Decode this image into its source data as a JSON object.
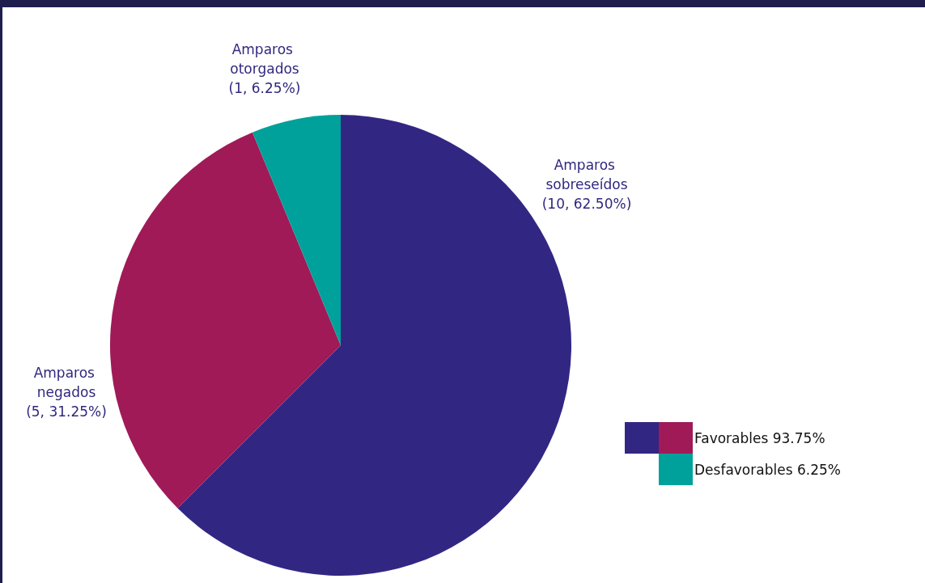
{
  "chart_data": {
    "type": "pie",
    "categories": [
      "Amparos sobreseídos",
      "Amparos negados",
      "Amparos otorgados"
    ],
    "values": [
      10,
      5,
      1
    ],
    "value_labels": [
      "(10, 62.50%)",
      "(5, 31.25%)",
      "(1, 6.25%)"
    ],
    "colors": [
      "#312783",
      "#a01a58",
      "#00a19a"
    ],
    "annotations": [
      "Favorables 93.75%",
      "Desfavorables 6.25%"
    ]
  }
}
